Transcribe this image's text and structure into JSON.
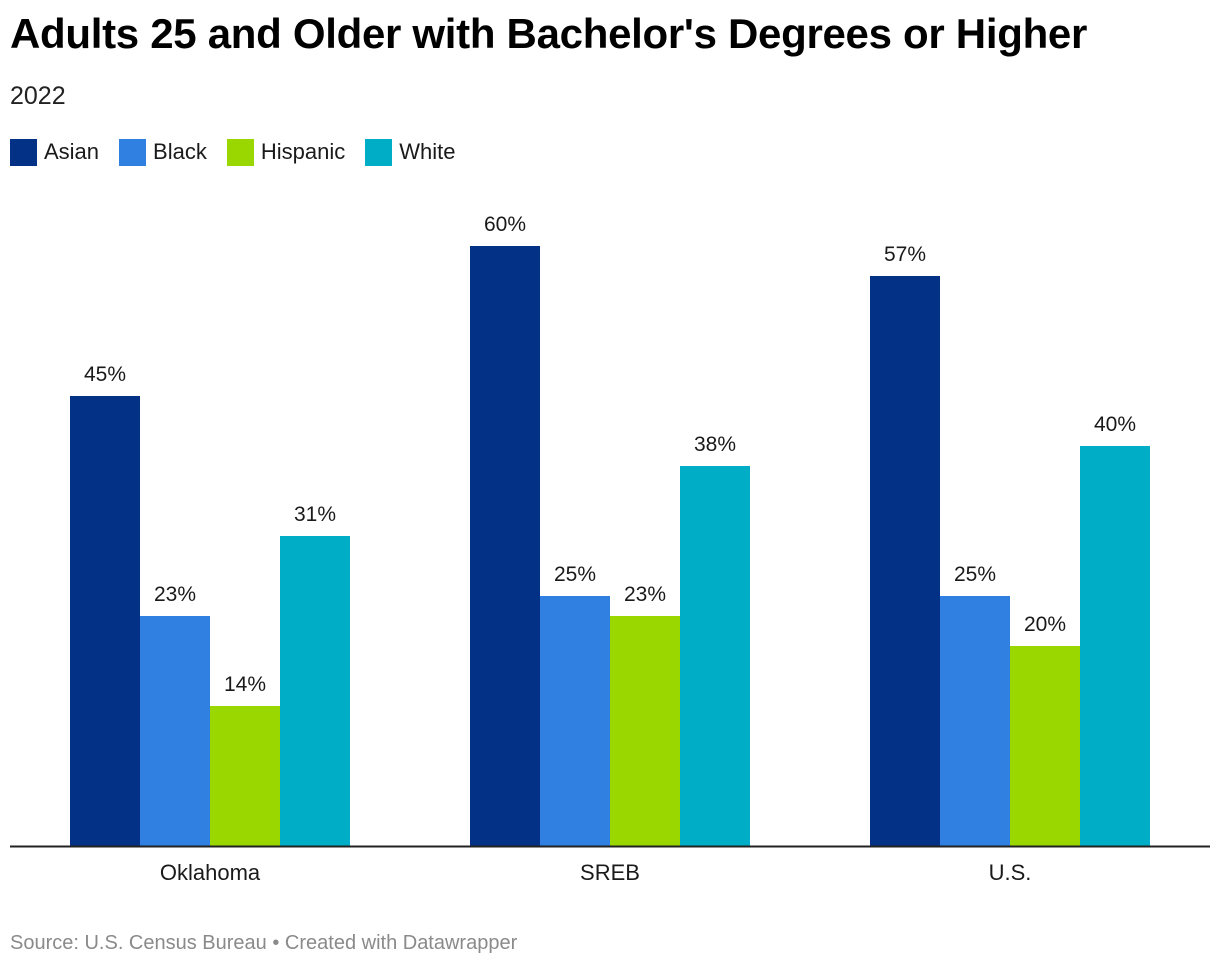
{
  "source": "Source: U.S. Census Bureau • Created with Datawrapper",
  "chart_data": {
    "type": "bar",
    "title": "Adults 25 and Older with Bachelor's Degrees or Higher",
    "subtitle": "2022",
    "categories": [
      "Oklahoma",
      "SREB",
      "U.S."
    ],
    "series": [
      {
        "name": "Asian",
        "color": "#023185",
        "values": [
          45,
          60,
          57
        ]
      },
      {
        "name": "Black",
        "color": "#2f80e1",
        "values": [
          23,
          25,
          25
        ]
      },
      {
        "name": "Hispanic",
        "color": "#9ad600",
        "values": [
          14,
          23,
          20
        ]
      },
      {
        "name": "White",
        "color": "#00adc7",
        "values": [
          31,
          38,
          40
        ]
      }
    ],
    "value_suffix": "%",
    "ylim": [
      0,
      65
    ],
    "xlabel": "",
    "ylabel": "",
    "grid": false,
    "legend_position": "top-left"
  }
}
